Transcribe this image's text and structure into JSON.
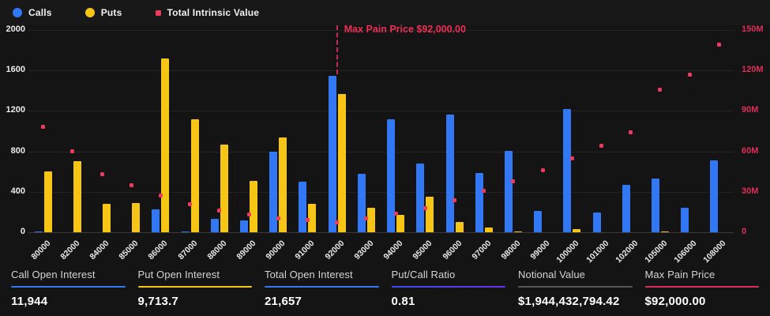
{
  "legend": {
    "calls": "Calls",
    "puts": "Puts",
    "intrinsic": "Total Intrinsic Value"
  },
  "colors": {
    "calls": "#3277f3",
    "puts": "#f7c515",
    "intrinsic": "#ee3a5e",
    "maxpain_text": "#ee2d57",
    "right_axis": "#e02c5a"
  },
  "chart_data": {
    "type": "bar",
    "categories": [
      "80000",
      "82000",
      "84000",
      "85000",
      "86000",
      "87000",
      "88000",
      "89000",
      "90000",
      "91000",
      "92000",
      "93000",
      "94000",
      "95000",
      "96000",
      "97000",
      "98000",
      "99000",
      "100000",
      "101000",
      "102000",
      "105000",
      "106000",
      "108000"
    ],
    "series": [
      {
        "name": "Calls",
        "type": "bar",
        "axis": "left",
        "color": "#3277f3",
        "values": [
          10,
          0,
          0,
          0,
          230,
          10,
          130,
          115,
          800,
          500,
          1550,
          575,
          1120,
          680,
          1165,
          585,
          805,
          210,
          1220,
          195,
          465,
          535,
          240,
          710
        ]
      },
      {
        "name": "Puts",
        "type": "bar",
        "axis": "left",
        "color": "#f7c515",
        "values": [
          605,
          700,
          285,
          290,
          1720,
          1120,
          870,
          510,
          940,
          280,
          1370,
          240,
          175,
          350,
          100,
          45,
          10,
          0,
          35,
          0,
          0,
          10,
          0,
          0
        ]
      },
      {
        "name": "Total Intrinsic Value",
        "type": "scatter",
        "axis": "right",
        "color": "#ee3a5e",
        "values_millions": [
          78,
          60,
          43,
          35,
          27,
          21,
          16,
          13,
          10,
          9,
          7.5,
          10.5,
          13.5,
          18,
          24,
          31,
          38,
          46,
          55,
          64,
          74,
          106,
          117,
          139
        ]
      }
    ],
    "left_axis": {
      "max": 2000,
      "ticks": [
        "2000",
        "1600",
        "1200",
        "800",
        "400",
        "0"
      ]
    },
    "right_axis": {
      "max_millions": 150,
      "ticks": [
        "150M",
        "120M",
        "90M",
        "60M",
        "30M",
        "0"
      ]
    },
    "annotation": {
      "label": "Max Pain Price $92,000.00",
      "category": "92000"
    },
    "grid": true,
    "legend_position": "top-left"
  },
  "stats": [
    {
      "label": "Call Open Interest",
      "value": "11,944",
      "underline": "#3277f3"
    },
    {
      "label": "Put Open Interest",
      "value": "9,713.7",
      "underline": "#f7c515"
    },
    {
      "label": "Total Open Interest",
      "value": "21,657",
      "underline": "#3277f3"
    },
    {
      "label": "Put/Call Ratio",
      "value": "0.81",
      "underline": "linear-gradient(90deg,#3c4df0,#6a2ff0)"
    },
    {
      "label": "Notional Value",
      "value": "$1,944,432,794.42",
      "underline": "#565656"
    },
    {
      "label": "Max Pain Price",
      "value": "$92,000.00",
      "underline": "#e02c5a"
    }
  ]
}
